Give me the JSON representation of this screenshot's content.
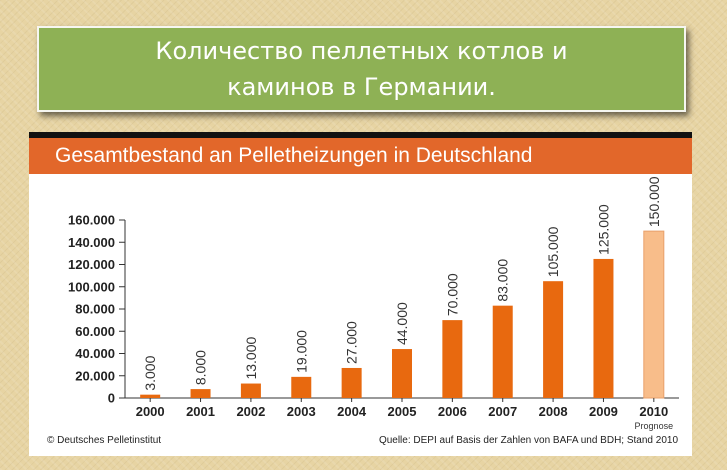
{
  "slide": {
    "title": "Количество пеллетных котлов и каминов в Германии."
  },
  "chart_data": {
    "type": "bar",
    "title": "Gesamtbestand an Pelletheizungen in Deutschland",
    "categories": [
      "2000",
      "2001",
      "2002",
      "2003",
      "2004",
      "2005",
      "2006",
      "2007",
      "2008",
      "2009",
      "2010"
    ],
    "values": [
      3000,
      8000,
      13000,
      19000,
      27000,
      44000,
      70000,
      83000,
      105000,
      125000,
      150000
    ],
    "value_labels": [
      "3.000",
      "8.000",
      "13.000",
      "19.000",
      "27.000",
      "44.000",
      "70.000",
      "83.000",
      "105.000",
      "125.000",
      "150.000"
    ],
    "y_ticks": [
      0,
      20000,
      40000,
      60000,
      80000,
      100000,
      120000,
      140000,
      160000
    ],
    "y_tick_labels": [
      "0",
      "20.000",
      "40.000",
      "60.000",
      "80.000",
      "100.000",
      "120.000",
      "140.000",
      "160.000"
    ],
    "ylim": [
      0,
      160000
    ],
    "forecast_category": "2010",
    "forecast_label": "Prognose",
    "grid": false,
    "colors": {
      "bar": "#e8690f",
      "forecast_bar": "#f8bd8a",
      "header": "#e2672a"
    },
    "footer_left": "© Deutsches Pelletinstitut",
    "footer_right": "Quelle: DEPI auf Basis der Zahlen von BAFA und BDH; Stand 2010"
  }
}
